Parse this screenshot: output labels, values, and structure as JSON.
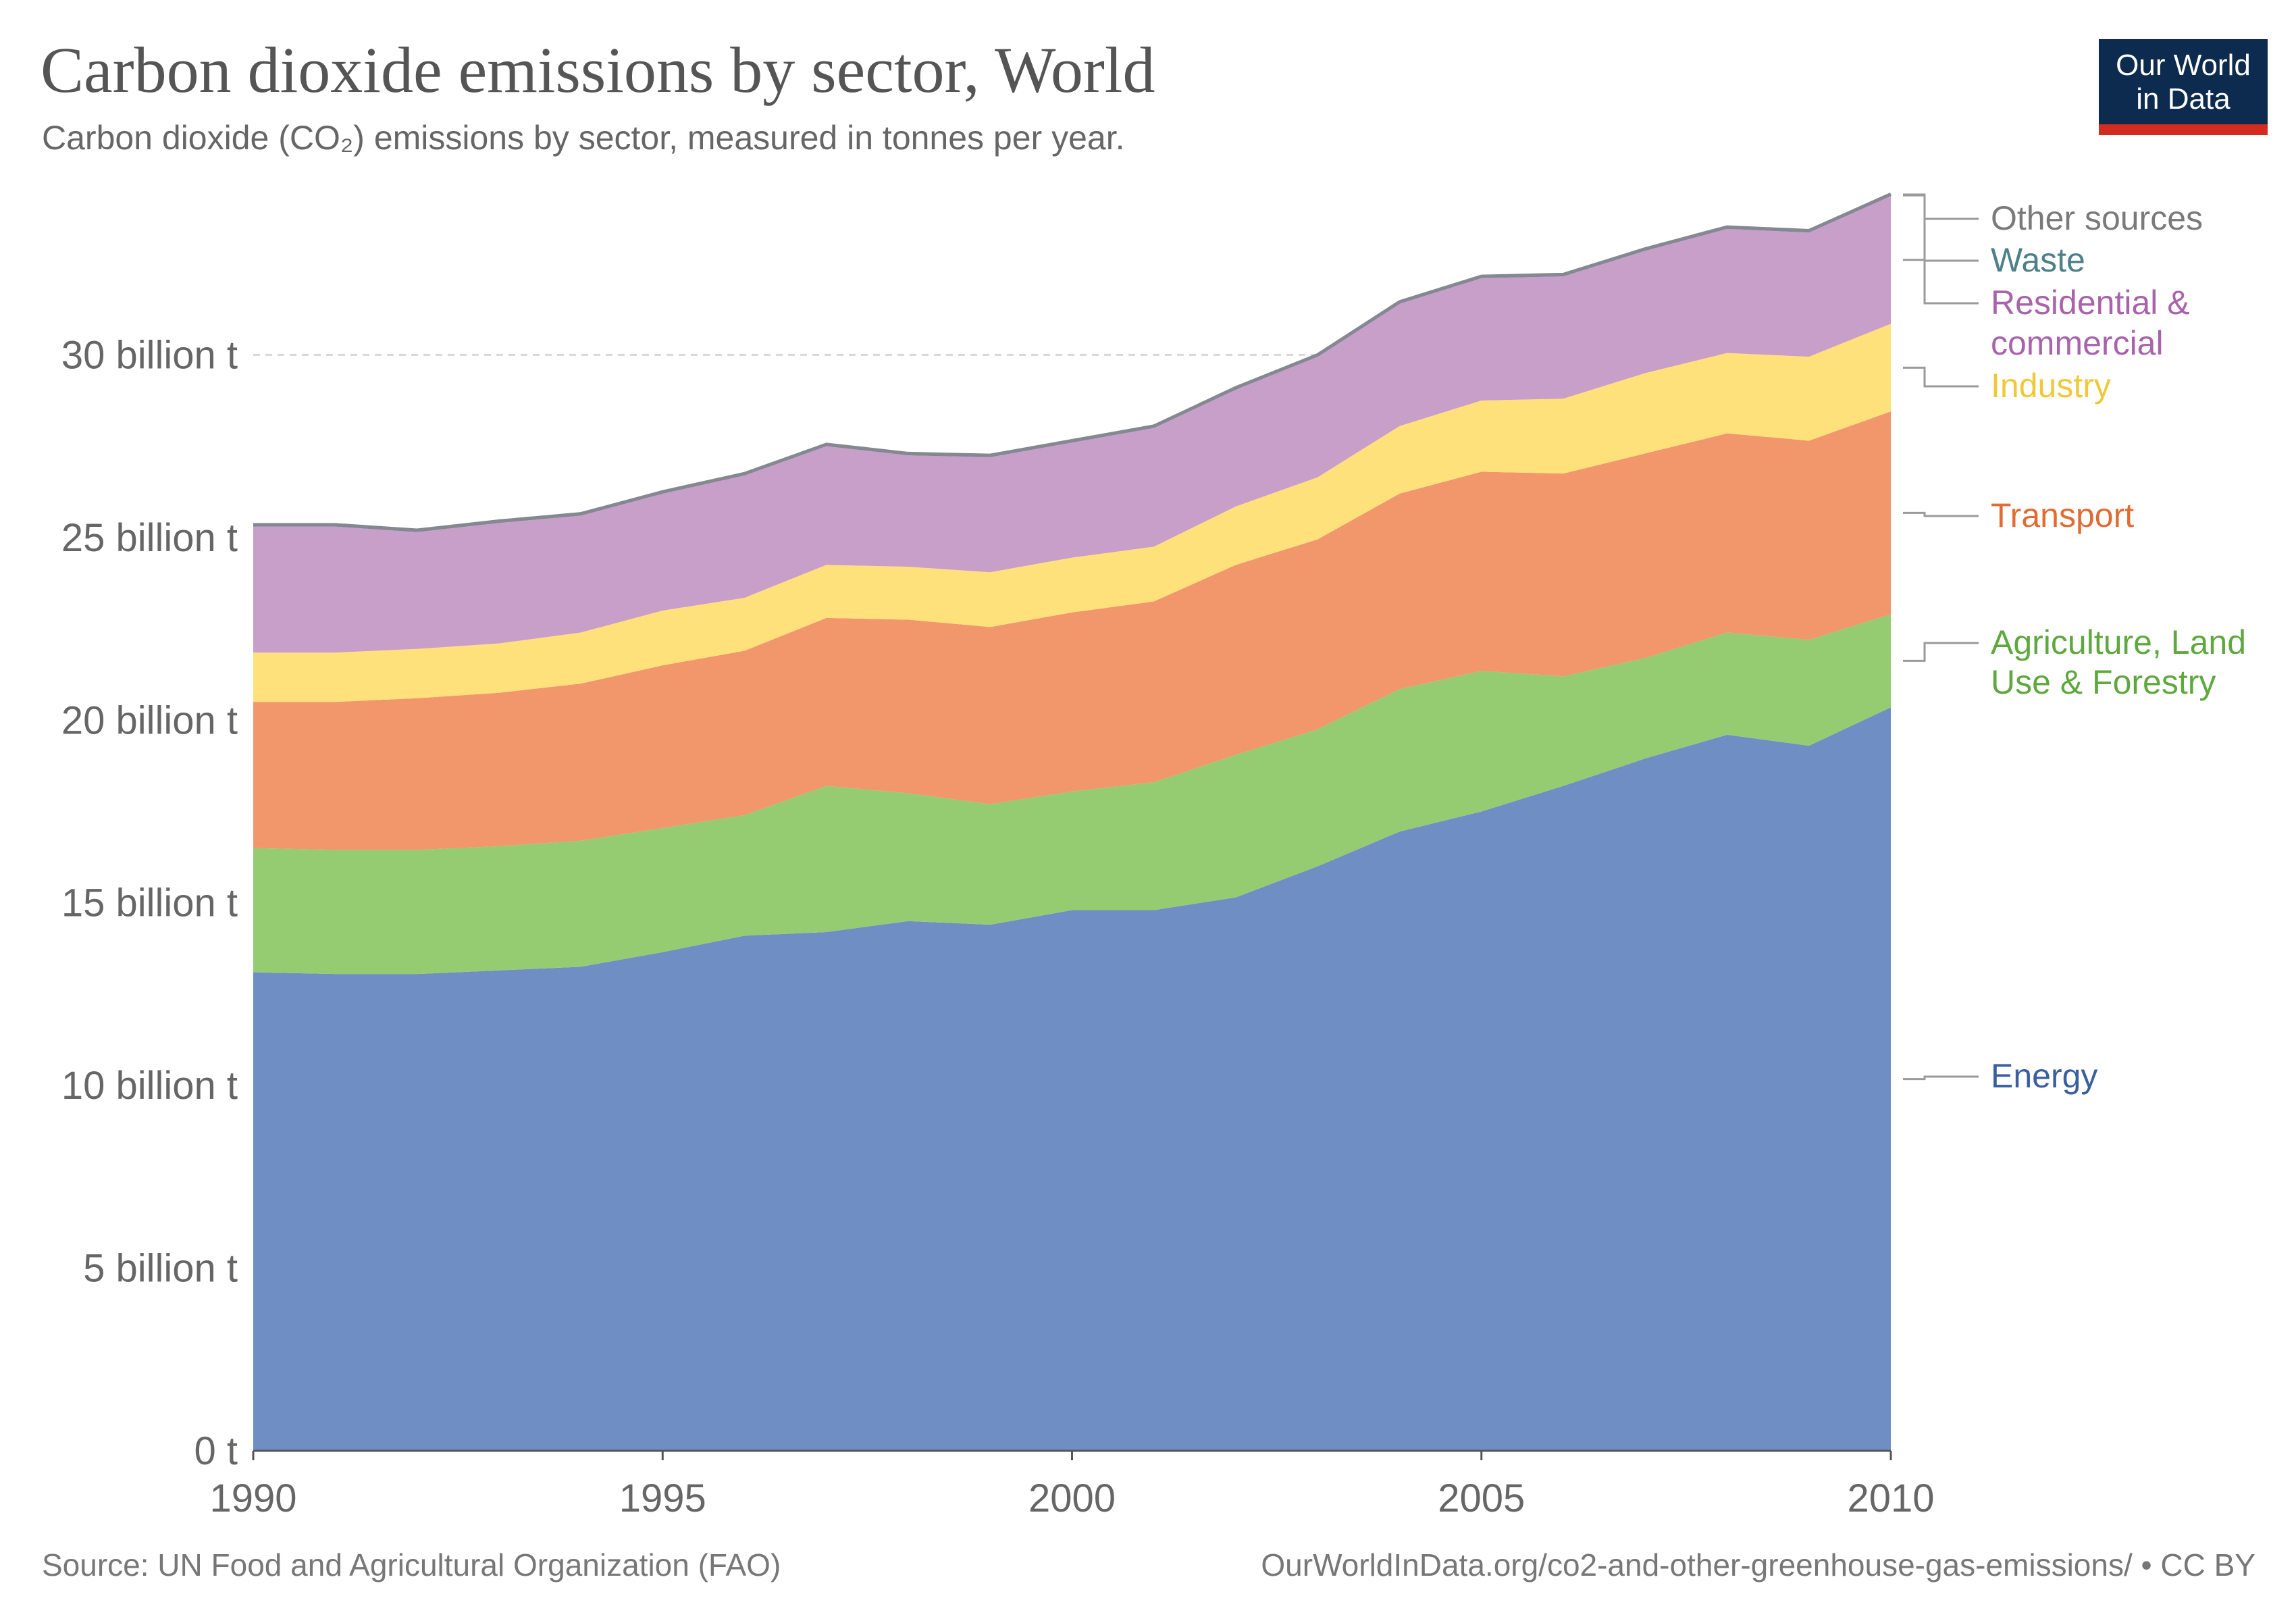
{
  "title": "Carbon dioxide emissions by sector, World",
  "subtitle": "Carbon dioxide (CO₂) emissions by sector, measured in tonnes per year.",
  "logo": {
    "line1": "Our World",
    "line2": "in Data"
  },
  "footer": {
    "source": "Source: UN Food and Agricultural Organization (FAO)",
    "url": "OurWorldInData.org/co2-and-other-greenhouse-gas-emissions/ • CC BY"
  },
  "chart_data": {
    "type": "area",
    "stacked": true,
    "x": [
      1990,
      1991,
      1992,
      1993,
      1994,
      1995,
      1996,
      1997,
      1998,
      1999,
      2000,
      2001,
      2002,
      2003,
      2004,
      2005,
      2006,
      2007,
      2008,
      2009,
      2010
    ],
    "xticks": [
      "1990",
      "1995",
      "2000",
      "2005",
      "2010"
    ],
    "yticks": [
      "0 t",
      "5 billion t",
      "10 billion t",
      "15 billion t",
      "20 billion t",
      "25 billion t",
      "30 billion t"
    ],
    "ylim": [
      0,
      34.5
    ],
    "y_unit": "billion t",
    "grid": true,
    "legend_placement": "right",
    "series": [
      {
        "name": "Energy",
        "color": "#6f8fc4",
        "label_color": "#3a5f9e",
        "values": [
          13.1,
          13.05,
          13.05,
          13.15,
          13.25,
          13.65,
          14.1,
          14.2,
          14.5,
          14.4,
          14.8,
          14.8,
          15.15,
          16.0,
          16.95,
          17.5,
          18.2,
          18.95,
          19.6,
          19.3,
          20.35
        ]
      },
      {
        "name": "Agriculture, Land Use & Forestry",
        "color": "#95cb71",
        "label_color": "#5fa83f",
        "values": [
          3.4,
          3.4,
          3.4,
          3.4,
          3.45,
          3.4,
          3.3,
          4.0,
          3.5,
          3.3,
          3.25,
          3.5,
          3.9,
          3.75,
          3.9,
          3.85,
          3.0,
          2.75,
          2.8,
          2.9,
          2.55
        ]
      },
      {
        "name": "Transport",
        "color": "#f2966b",
        "label_color": "#e06c33",
        "values": [
          4.0,
          4.05,
          4.15,
          4.2,
          4.3,
          4.45,
          4.5,
          4.6,
          4.75,
          4.85,
          4.9,
          4.95,
          5.2,
          5.2,
          5.35,
          5.45,
          5.55,
          5.6,
          5.45,
          5.45,
          5.55
        ]
      },
      {
        "name": "Industry",
        "color": "#fee17a",
        "label_color": "#f0c93a",
        "values": [
          1.35,
          1.35,
          1.35,
          1.35,
          1.4,
          1.5,
          1.45,
          1.45,
          1.45,
          1.5,
          1.5,
          1.5,
          1.6,
          1.7,
          1.85,
          1.95,
          2.05,
          2.2,
          2.2,
          2.3,
          2.4
        ]
      },
      {
        "name": "Residential & commercial",
        "color": "#c89fc9",
        "label_color": "#a963ab",
        "values": [
          3.45,
          3.45,
          3.2,
          3.3,
          3.2,
          3.2,
          3.35,
          3.25,
          3.05,
          3.15,
          3.15,
          3.25,
          3.2,
          3.3,
          3.35,
          3.35,
          3.35,
          3.35,
          3.4,
          3.4,
          3.5
        ]
      },
      {
        "name": "Waste",
        "color": "#5a8a8e",
        "label_color": "#4d8088",
        "values": [
          0.03,
          0.03,
          0.03,
          0.03,
          0.03,
          0.03,
          0.03,
          0.03,
          0.03,
          0.03,
          0.03,
          0.03,
          0.03,
          0.03,
          0.03,
          0.03,
          0.03,
          0.03,
          0.03,
          0.03,
          0.03
        ]
      },
      {
        "name": "Other sources",
        "color": "#858890",
        "label_color": "#7a7a7a",
        "values": [
          0.02,
          0.02,
          0.02,
          0.02,
          0.02,
          0.02,
          0.02,
          0.02,
          0.02,
          0.02,
          0.02,
          0.02,
          0.02,
          0.02,
          0.02,
          0.02,
          0.02,
          0.02,
          0.02,
          0.02,
          0.02
        ]
      }
    ],
    "legend": [
      {
        "text": "Other sources",
        "series": "Other sources"
      },
      {
        "text": "Waste",
        "series": "Waste"
      },
      {
        "text": "Residential &",
        "text2": "commercial",
        "series": "Residential & commercial"
      },
      {
        "text": "Industry",
        "series": "Industry"
      },
      {
        "text": "Transport",
        "series": "Transport"
      },
      {
        "text": "Agriculture, Land",
        "text2": "Use & Forestry",
        "series": "Agriculture, Land Use & Forestry"
      },
      {
        "text": "Energy",
        "series": "Energy"
      }
    ]
  }
}
